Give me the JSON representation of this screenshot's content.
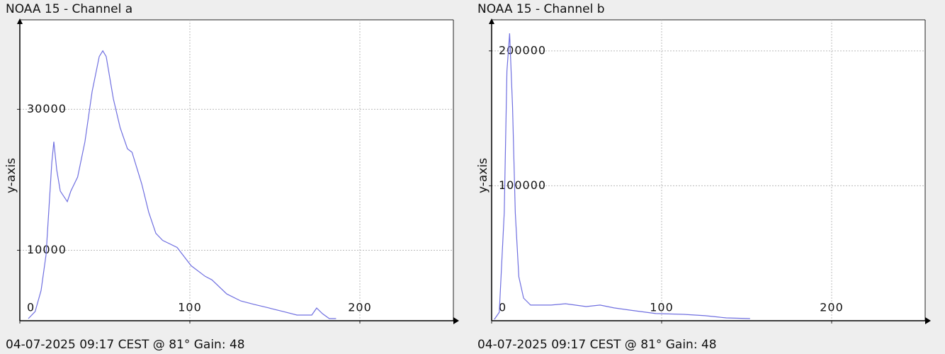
{
  "chart_data": [
    {
      "type": "line",
      "title": "NOAA 15 - Channel a",
      "y_label": "y-axis",
      "footer": "04-07-2025 09:17 CEST @ 81° Gain: 48",
      "x": [
        5,
        9,
        12.5,
        15.4,
        17.5,
        18.8,
        20,
        21.7,
        23.8,
        27.9,
        30,
        34,
        38.3,
        42.5,
        46.7,
        48.8,
        50.8,
        55,
        59,
        63.3,
        66,
        71.7,
        75.8,
        80,
        84,
        92.5,
        100.8,
        109,
        113,
        121.7,
        130,
        138,
        146.7,
        155,
        163,
        171.7,
        174.6,
        178,
        182,
        186
      ],
      "series": [
        {
          "name": "Channel a",
          "color": "#6f6fe0",
          "values": [
            300,
            1300,
            4300,
            9350,
            17400,
            22400,
            25400,
            21400,
            18400,
            16900,
            18400,
            20400,
            25400,
            32500,
            37500,
            38300,
            37500,
            31500,
            27400,
            24400,
            23900,
            19400,
            15400,
            12400,
            11400,
            10400,
            7800,
            6300,
            5800,
            3800,
            2800,
            2300,
            1800,
            1300,
            800,
            800,
            1800,
            1000,
            300,
            300
          ]
        }
      ],
      "xlim": [
        0,
        255
      ],
      "xticks": [
        0,
        100,
        200
      ],
      "ylim": [
        0,
        42700
      ],
      "yticks": [
        10000,
        30000
      ],
      "grid": true
    },
    {
      "type": "line",
      "title": "NOAA 15 - Channel b",
      "y_label": "y-axis",
      "footer": "04-07-2025 09:17 CEST @ 81° Gain: 48",
      "x": [
        1.6,
        4.5,
        7.4,
        9,
        10.6,
        12.3,
        13.9,
        16,
        18.8,
        22.9,
        35,
        43.4,
        55.6,
        63.8,
        72,
        84,
        96.6,
        113,
        125.6,
        138,
        152
      ],
      "series": [
        {
          "name": "Channel b",
          "color": "#6f6fe0",
          "values": [
            1000,
            6300,
            80000,
            185000,
            213000,
            159000,
            80000,
            32600,
            16800,
            11600,
            11600,
            12600,
            10500,
            11600,
            9500,
            7400,
            5300,
            4700,
            3700,
            2100,
            1600
          ]
        }
      ],
      "xlim": [
        0,
        255
      ],
      "xticks": [
        0,
        100,
        200
      ],
      "ylim": [
        0,
        223000
      ],
      "yticks": [
        100000,
        200000
      ],
      "grid": true
    }
  ]
}
